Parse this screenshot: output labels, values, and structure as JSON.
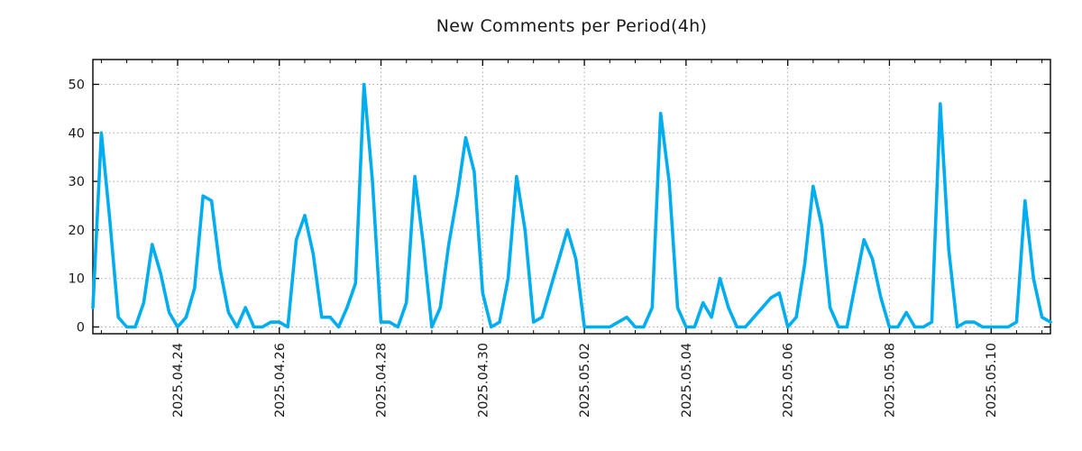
{
  "title": "New Comments per Period(4h)",
  "chart_data": {
    "type": "line",
    "title": "New Comments per Period(4h)",
    "series_name": "new-comments",
    "period_hours": 4,
    "line_color": "#00AEEF",
    "grid_color": "#a8a8a8",
    "axis_color": "#000000",
    "grid_style": "dotted",
    "legend": "none",
    "ylim": [
      -1.5,
      54.8
    ],
    "y_ticks": [
      0,
      10,
      20,
      30,
      40,
      50
    ],
    "x_tick_labels": [
      "2025.04.24",
      "2025.04.26",
      "2025.04.28",
      "2025.04.30",
      "2025.05.02",
      "2025.05.04",
      "2025.05.06",
      "2025.05.08",
      "2025.05.10"
    ],
    "x_tick_indices": [
      10,
      22,
      34,
      46,
      58,
      70,
      82,
      94,
      106
    ],
    "x_minor_tick_every_points": 3,
    "values": [
      4,
      40,
      22,
      2,
      0,
      0,
      5,
      17,
      11,
      3,
      0,
      2,
      8,
      27,
      26,
      12,
      3,
      0,
      4,
      0,
      0,
      1,
      1,
      0,
      18,
      23,
      15,
      2,
      2,
      0,
      4,
      9,
      50,
      30,
      1,
      1,
      0,
      5,
      31,
      17,
      0,
      4,
      17,
      27,
      39,
      32,
      7,
      0,
      1,
      10,
      31,
      20,
      1,
      2,
      8,
      14,
      20,
      14,
      0,
      0,
      0,
      0,
      1,
      2,
      0,
      0,
      4,
      44,
      30,
      4,
      0,
      0,
      5,
      2,
      10,
      4,
      0,
      0,
      2,
      4,
      6,
      7,
      0,
      2,
      13,
      29,
      21,
      4,
      0,
      0,
      9,
      18,
      14,
      6,
      0,
      0,
      3,
      0,
      0,
      1,
      46,
      16,
      0,
      1,
      1,
      0,
      0,
      0,
      0,
      1,
      26,
      10,
      2,
      1
    ]
  }
}
